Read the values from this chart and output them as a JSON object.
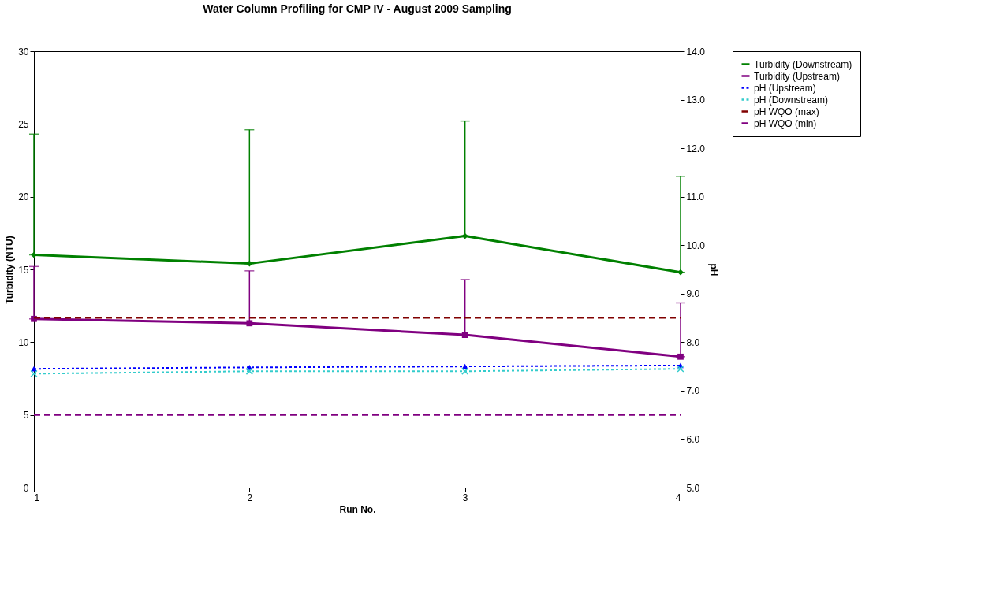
{
  "chart_data": {
    "type": "line",
    "title": "Water Column Profiling for CMP IV - August 2009 Sampling",
    "xlabel": "Run No.",
    "ylabel": "Turbidity (NTU)",
    "y2label": "pH",
    "x": [
      1,
      2,
      3,
      4
    ],
    "xlim": [
      1,
      4
    ],
    "xticks": [
      1,
      2,
      3,
      4
    ],
    "ylim": [
      0,
      30
    ],
    "yticks": [
      0,
      5,
      10,
      15,
      20,
      25,
      30
    ],
    "y2lim": [
      5,
      14
    ],
    "y2ticks": [
      {
        "value": 5,
        "label": "5.0"
      },
      {
        "value": 6,
        "label": "6.0"
      },
      {
        "value": 7,
        "label": "7.0"
      },
      {
        "value": 8,
        "label": "8.0"
      },
      {
        "value": 9,
        "label": "9.0"
      },
      {
        "value": 10,
        "label": "10.0"
      },
      {
        "value": 11,
        "label": "11.0"
      },
      {
        "value": 12,
        "label": "12.0"
      },
      {
        "value": 13,
        "label": "13.0"
      },
      {
        "value": 14,
        "label": "14.0"
      }
    ],
    "grid": false,
    "legend": "right",
    "series": [
      {
        "name": "Turbidity (Downstream)",
        "color": "#008000",
        "marker": "diamond",
        "line_style": "solid",
        "values": [
          16.0,
          15.4,
          17.3,
          14.8
        ],
        "errors": [
          [
            16.0,
            24.3
          ],
          [
            15.4,
            24.6
          ],
          [
            17.3,
            25.2
          ],
          [
            14.8,
            21.4
          ]
        ]
      },
      {
        "name": "Turbidity (Upstream)",
        "color": "#800080",
        "marker": "square",
        "line_style": "solid",
        "values": [
          11.6,
          11.3,
          10.5,
          9.0
        ],
        "errors": [
          [
            11.6,
            15.2
          ],
          [
            11.3,
            14.9
          ],
          [
            10.5,
            14.3
          ],
          [
            9.0,
            12.7
          ]
        ]
      },
      {
        "name": "pH (Upstream)",
        "color": "#0000ff",
        "marker": "triangle",
        "line_style": "dotted",
        "axis": "y2",
        "values": [
          7.45,
          7.48,
          7.5,
          7.52
        ]
      },
      {
        "name": "pH (Downstream)",
        "color": "#33cccc",
        "marker": "cross",
        "line_style": "dotted",
        "axis": "y2",
        "values": [
          7.35,
          7.4,
          7.4,
          7.45
        ]
      },
      {
        "name": "pH WQO (max)",
        "color": "#800000",
        "marker": "none",
        "line_style": "dashed",
        "axis": "y2",
        "values": [
          8.5,
          8.5,
          8.5,
          8.5
        ]
      },
      {
        "name": "pH WQO (min)",
        "color": "#800080",
        "marker": "none",
        "line_style": "dashed",
        "axis": "y2",
        "values": [
          6.5,
          6.5,
          6.5,
          6.5
        ]
      }
    ]
  }
}
